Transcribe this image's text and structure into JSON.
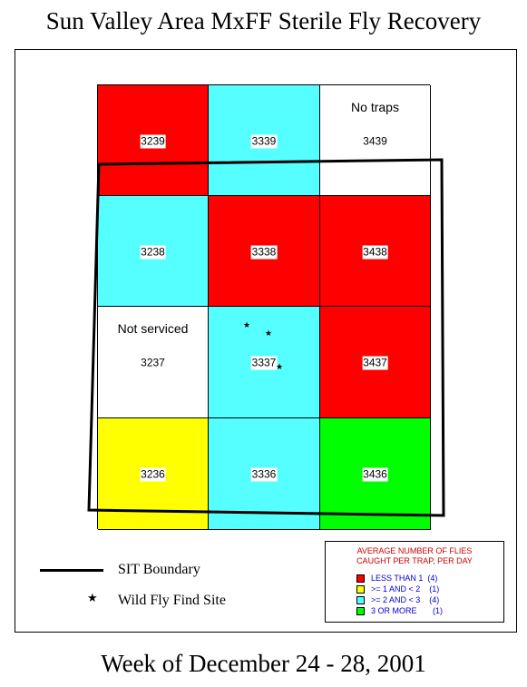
{
  "title": "Sun Valley Area MxFF Sterile Fly Recovery",
  "footer": "Week of December 24 - 28, 2001",
  "colors": {
    "less_than_1": "#ff0000",
    "one_to_two": "#ffff00",
    "two_to_three": "#55ffff",
    "three_or_more": "#00ff00",
    "no_data": "#ffffff"
  },
  "grid": {
    "rows": [
      [
        {
          "id": "3239",
          "category": "less_than_1",
          "note": ""
        },
        {
          "id": "3339",
          "category": "two_to_three",
          "note": ""
        },
        {
          "id": "3439",
          "category": "no_data",
          "note": "No traps"
        }
      ],
      [
        {
          "id": "3238",
          "category": "two_to_three",
          "note": ""
        },
        {
          "id": "3338",
          "category": "less_than_1",
          "note": ""
        },
        {
          "id": "3438",
          "category": "less_than_1",
          "note": ""
        }
      ],
      [
        {
          "id": "3237",
          "category": "no_data",
          "note": "Not serviced"
        },
        {
          "id": "3337",
          "category": "two_to_three",
          "note": ""
        },
        {
          "id": "3437",
          "category": "less_than_1",
          "note": ""
        }
      ],
      [
        {
          "id": "3236",
          "category": "one_to_two",
          "note": ""
        },
        {
          "id": "3336",
          "category": "two_to_three",
          "note": ""
        },
        {
          "id": "3436",
          "category": "three_or_more",
          "note": ""
        }
      ]
    ]
  },
  "wild_fly_sites": [
    {
      "cell": "3337",
      "count": 3
    }
  ],
  "key": {
    "boundary_label": "SIT Boundary",
    "wild_fly_label": "Wild Fly Find Site",
    "star_glyph": "★"
  },
  "legend": {
    "title_line1": "AVERAGE NUMBER OF FLIES",
    "title_line2": "CAUGHT PER TRAP, PER DAY",
    "items": [
      {
        "label": "LESS THAN 1  (4)",
        "color": "#ff0000"
      },
      {
        "label": ">= 1 AND < 2    (1)",
        "color": "#ffff00"
      },
      {
        "label": ">= 2 AND < 3    (4)",
        "color": "#55ffff"
      },
      {
        "label": "3 OR MORE       (1)",
        "color": "#00ff00"
      }
    ]
  }
}
